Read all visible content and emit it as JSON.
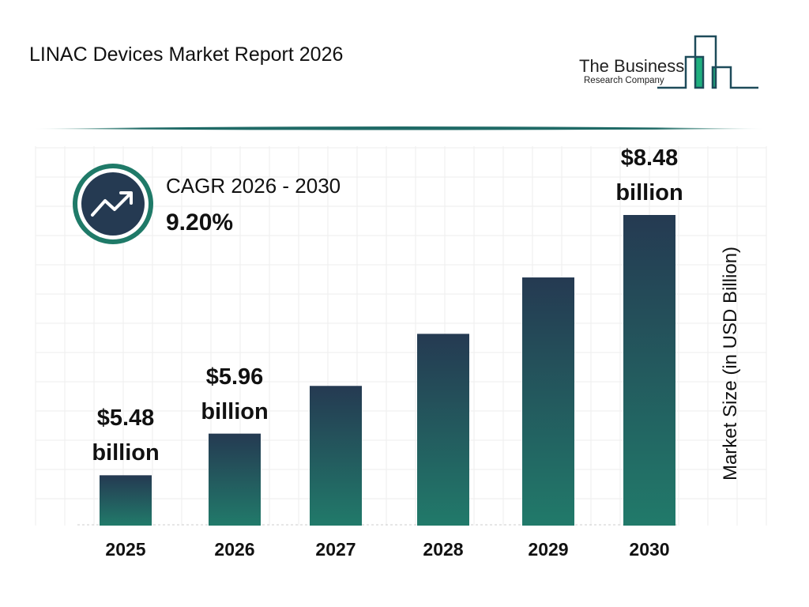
{
  "header": {
    "title": "LINAC Devices Market Report 2026"
  },
  "logo": {
    "line1": "The Business",
    "line2": "Research Company"
  },
  "cagr": {
    "label": "CAGR 2026 - 2030",
    "value": "9.20%",
    "icon": "trend-up-arrow-icon"
  },
  "colors": {
    "bar_top": "#253a52",
    "bar_bottom": "#217a6a",
    "accent": "#1f7a68",
    "logo_green": "#1fb07f"
  },
  "chart_data": {
    "type": "bar",
    "categories": [
      "2025",
      "2026",
      "2027",
      "2028",
      "2029",
      "2030"
    ],
    "values": [
      5.48,
      5.96,
      6.51,
      7.11,
      7.76,
      8.48
    ],
    "data_labels": [
      {
        "index": 0,
        "line1": "$5.48",
        "line2": "billion"
      },
      {
        "index": 1,
        "line1": "$5.96",
        "line2": "billion"
      },
      {
        "index": 5,
        "line1": "$8.48",
        "line2": "billion"
      }
    ],
    "title": "",
    "xlabel": "",
    "ylabel": "Market Size (in USD Billion)",
    "grid": true
  }
}
